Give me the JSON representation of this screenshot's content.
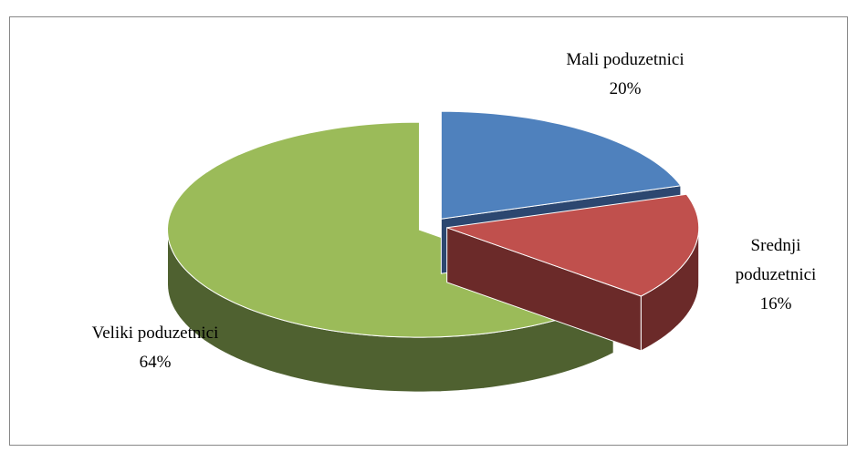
{
  "chart_data": {
    "type": "pie3d",
    "categories": [
      "Mali poduzetnici",
      "Srednji poduzetnici",
      "Veliki poduzetnici"
    ],
    "values": [
      20,
      16,
      64
    ],
    "value_labels": [
      "20%",
      "16%",
      "64%"
    ],
    "colors": [
      "#4f81bd",
      "#c0504d",
      "#9bbb59"
    ],
    "side_colors": [
      "#2c4770",
      "#6b2a29",
      "#4f6130"
    ]
  }
}
